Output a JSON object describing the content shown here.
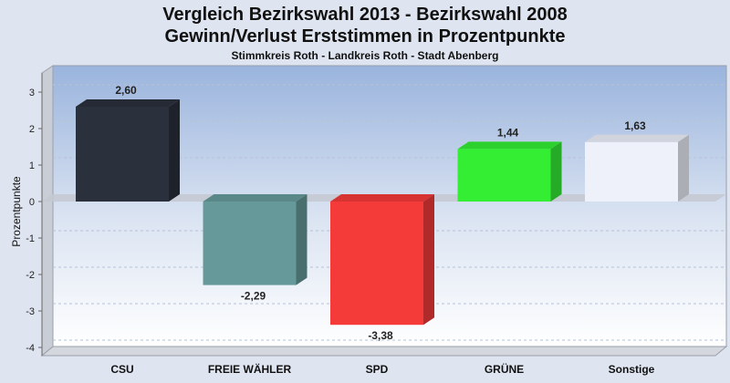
{
  "chart_data": {
    "type": "bar",
    "title": "Vergleich Bezirkswahl 2013 - Bezirkswahl 2008",
    "subtitle": "Gewinn/Verlust Erststimmen in Prozentpunkte",
    "caption": "Stimmkreis Roth - Landkreis Roth - Stadt Abenberg",
    "ylabel": "Prozentpunkte",
    "ylim": [
      -4,
      3.5
    ],
    "yticks": [
      3,
      2,
      1,
      0,
      -1,
      -2,
      -3,
      -4
    ],
    "grid": true,
    "categories": [
      "CSU",
      "FREIE WÄHLER",
      "SPD",
      "GRÜNE",
      "Sonstige"
    ],
    "values": [
      2.6,
      -2.29,
      -3.38,
      1.44,
      1.63
    ],
    "value_labels": [
      "2,60",
      "-2,29",
      "-3,38",
      "1,44",
      "1,63"
    ],
    "colors": [
      "#2a303c",
      "#669999",
      "#f53a3a",
      "#33ee33",
      "#eef1fa"
    ]
  }
}
